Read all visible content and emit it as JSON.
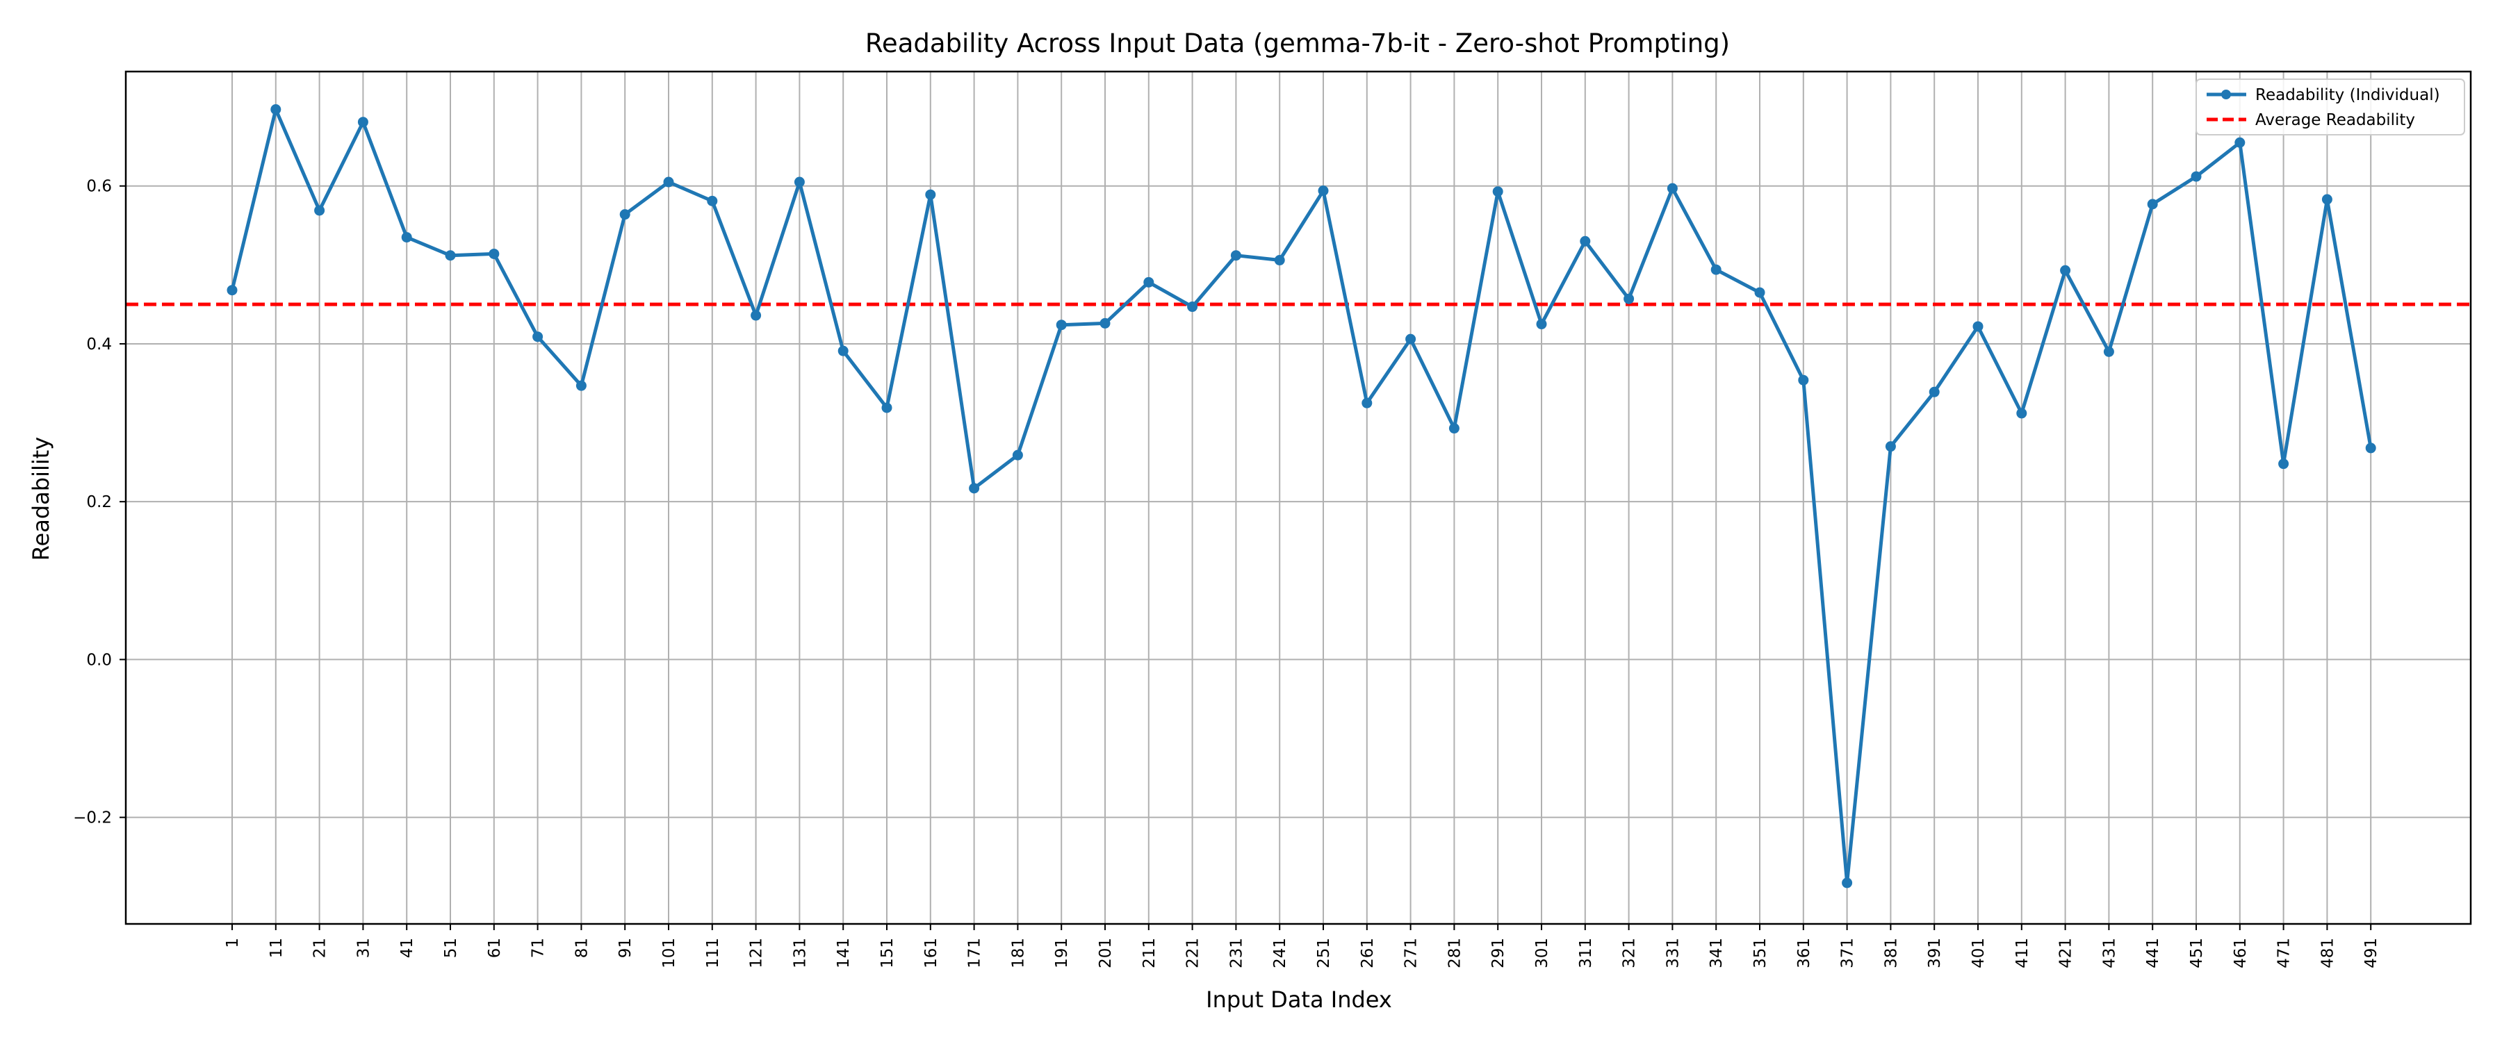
{
  "chart_data": {
    "type": "line",
    "title": "Readability Across Input Data (gemma-7b-it - Zero-shot Prompting)",
    "xlabel": "Input Data Index",
    "ylabel": "Readability",
    "categories": [
      "1",
      "11",
      "21",
      "31",
      "41",
      "51",
      "61",
      "71",
      "81",
      "91",
      "101",
      "111",
      "121",
      "131",
      "141",
      "151",
      "161",
      "171",
      "181",
      "191",
      "201",
      "211",
      "221",
      "231",
      "241",
      "251",
      "261",
      "271",
      "281",
      "291",
      "301",
      "311",
      "321",
      "331",
      "341",
      "351",
      "361",
      "371",
      "381",
      "391",
      "401",
      "411",
      "421",
      "431",
      "441",
      "451",
      "461",
      "471",
      "481",
      "491"
    ],
    "series": [
      {
        "name": "Readability (Individual)",
        "color": "#1f77b4",
        "values": [
          0.468,
          0.697,
          0.569,
          0.681,
          0.535,
          0.512,
          0.514,
          0.409,
          0.347,
          0.564,
          0.605,
          0.581,
          0.436,
          0.605,
          0.391,
          0.319,
          0.589,
          0.217,
          0.259,
          0.424,
          0.426,
          0.478,
          0.447,
          0.512,
          0.506,
          0.594,
          0.325,
          0.406,
          0.293,
          0.593,
          0.425,
          0.53,
          0.457,
          0.597,
          0.494,
          0.465,
          0.354,
          -0.283,
          0.27,
          0.339,
          0.422,
          0.312,
          0.493,
          0.39,
          0.577,
          0.612,
          0.655,
          0.248,
          0.583,
          0.268
        ]
      }
    ],
    "average": {
      "name": "Average Readability",
      "value": 0.45,
      "color": "#ff0000"
    },
    "ylim": [
      -0.335,
      0.745
    ],
    "yticks": [
      -0.2,
      0.0,
      0.2,
      0.4,
      0.6
    ],
    "ytick_labels": [
      "−0.2",
      "0.0",
      "0.2",
      "0.4",
      "0.6"
    ],
    "grid": true,
    "legend_position": "top-right"
  }
}
